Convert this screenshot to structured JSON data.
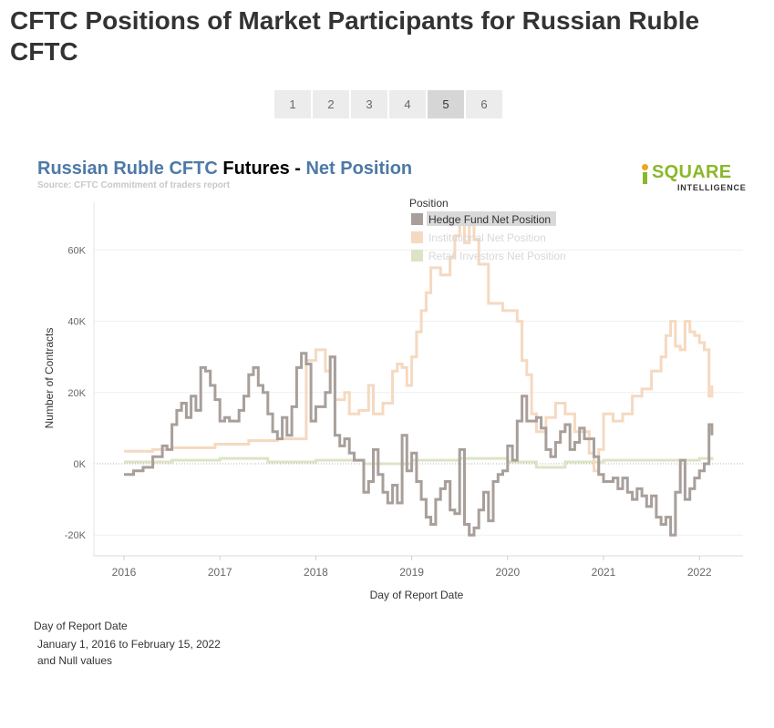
{
  "page": {
    "title": "CFTC Positions of Market Participants for Russian Ruble CFTC"
  },
  "pager": {
    "buttons": [
      "1",
      "2",
      "3",
      "4",
      "5",
      "6"
    ],
    "active": "5"
  },
  "chart_heading": {
    "part1": "Russian Ruble CFTC",
    "part2": " Futures - ",
    "part3": "Net Position"
  },
  "chart_source": "Source: CFTC Commitment of traders report",
  "logo": {
    "main": "SQUARE",
    "sub": "INTELLIGENCE"
  },
  "colors": {
    "hedge": "#a89f9b",
    "institutional": "#f5d9c0",
    "retail": "#dde3c5",
    "heading_blue": "#4e79a7",
    "logo_green": "#8bb72c",
    "logo_orange": "#f0a51c"
  },
  "filter": {
    "title": "Day of Report Date",
    "line1": "January 1, 2016 to February 15, 2022",
    "line2": "and Null values"
  },
  "chart_data": {
    "type": "line",
    "xlabel": "Day of Report Date",
    "ylabel": "Number of Contracts",
    "xlim": [
      2016.0,
      2022.5
    ],
    "ylim": [
      -23000,
      75000
    ],
    "x_ticks": [
      2016,
      2017,
      2018,
      2019,
      2020,
      2021,
      2022
    ],
    "x_tick_labels": [
      "2016",
      "2017",
      "2018",
      "2019",
      "2020",
      "2021",
      "2022"
    ],
    "y_ticks": [
      -20000,
      0,
      20000,
      40000,
      60000
    ],
    "y_tick_labels": [
      "-20K",
      "0K",
      "20K",
      "40K",
      "60K"
    ],
    "grid": true,
    "legend": {
      "title": "Position",
      "placement": "top-center",
      "highlighted": "Hedge Fund Net Position"
    },
    "series": [
      {
        "name": "Hedge Fund Net Position",
        "values": [
          [
            2016.0,
            -3000
          ],
          [
            2016.1,
            -2000
          ],
          [
            2016.2,
            -1000
          ],
          [
            2016.3,
            2000
          ],
          [
            2016.4,
            5000
          ],
          [
            2016.45,
            4000
          ],
          [
            2016.5,
            11000
          ],
          [
            2016.55,
            15000
          ],
          [
            2016.6,
            17000
          ],
          [
            2016.65,
            13000
          ],
          [
            2016.7,
            19000
          ],
          [
            2016.75,
            15000
          ],
          [
            2016.8,
            27000
          ],
          [
            2016.85,
            26000
          ],
          [
            2016.9,
            22000
          ],
          [
            2016.95,
            18000
          ],
          [
            2017.0,
            12000
          ],
          [
            2017.05,
            13000
          ],
          [
            2017.1,
            12000
          ],
          [
            2017.2,
            15000
          ],
          [
            2017.25,
            19000
          ],
          [
            2017.3,
            25000
          ],
          [
            2017.35,
            27000
          ],
          [
            2017.4,
            22000
          ],
          [
            2017.45,
            20000
          ],
          [
            2017.5,
            14000
          ],
          [
            2017.55,
            9000
          ],
          [
            2017.6,
            7000
          ],
          [
            2017.65,
            13000
          ],
          [
            2017.7,
            8000
          ],
          [
            2017.75,
            16000
          ],
          [
            2017.8,
            27000
          ],
          [
            2017.85,
            31000
          ],
          [
            2017.9,
            28000
          ],
          [
            2017.95,
            12000
          ],
          [
            2018.0,
            16000
          ],
          [
            2018.1,
            20000
          ],
          [
            2018.15,
            30000
          ],
          [
            2018.2,
            8000
          ],
          [
            2018.25,
            5000
          ],
          [
            2018.3,
            7000
          ],
          [
            2018.35,
            3000
          ],
          [
            2018.4,
            1000
          ],
          [
            2018.5,
            -8000
          ],
          [
            2018.55,
            -5000
          ],
          [
            2018.6,
            4000
          ],
          [
            2018.65,
            -3000
          ],
          [
            2018.7,
            -8000
          ],
          [
            2018.75,
            -11000
          ],
          [
            2018.8,
            -6000
          ],
          [
            2018.85,
            -11000
          ],
          [
            2018.9,
            8000
          ],
          [
            2018.95,
            -2000
          ],
          [
            2019.0,
            3000
          ],
          [
            2019.05,
            -5000
          ],
          [
            2019.1,
            -10000
          ],
          [
            2019.15,
            -15000
          ],
          [
            2019.2,
            -17000
          ],
          [
            2019.25,
            -10000
          ],
          [
            2019.3,
            -7000
          ],
          [
            2019.35,
            -5000
          ],
          [
            2019.4,
            -13000
          ],
          [
            2019.45,
            -14000
          ],
          [
            2019.5,
            4000
          ],
          [
            2019.55,
            -17000
          ],
          [
            2019.6,
            -20000
          ],
          [
            2019.65,
            -18000
          ],
          [
            2019.7,
            -13000
          ],
          [
            2019.75,
            -8000
          ],
          [
            2019.8,
            -16000
          ],
          [
            2019.85,
            -5000
          ],
          [
            2019.9,
            -3000
          ],
          [
            2019.95,
            -2000
          ],
          [
            2020.0,
            5000
          ],
          [
            2020.05,
            1000
          ],
          [
            2020.1,
            12000
          ],
          [
            2020.15,
            19000
          ],
          [
            2020.2,
            12000
          ],
          [
            2020.3,
            13000
          ],
          [
            2020.35,
            10000
          ],
          [
            2020.4,
            4000
          ],
          [
            2020.45,
            2000
          ],
          [
            2020.5,
            6000
          ],
          [
            2020.55,
            9000
          ],
          [
            2020.6,
            11000
          ],
          [
            2020.65,
            4000
          ],
          [
            2020.7,
            6000
          ],
          [
            2020.75,
            10000
          ],
          [
            2020.8,
            7000
          ],
          [
            2020.9,
            2000
          ],
          [
            2020.95,
            -3000
          ],
          [
            2021.0,
            -5000
          ],
          [
            2021.1,
            -4000
          ],
          [
            2021.15,
            -7000
          ],
          [
            2021.2,
            -4000
          ],
          [
            2021.25,
            -8000
          ],
          [
            2021.3,
            -10000
          ],
          [
            2021.35,
            -7000
          ],
          [
            2021.4,
            -9000
          ],
          [
            2021.45,
            -12000
          ],
          [
            2021.5,
            -9000
          ],
          [
            2021.55,
            -15000
          ],
          [
            2021.6,
            -17000
          ],
          [
            2021.65,
            -15000
          ],
          [
            2021.7,
            -20000
          ],
          [
            2021.75,
            -8000
          ],
          [
            2021.8,
            1000
          ],
          [
            2021.85,
            -10000
          ],
          [
            2021.9,
            -7000
          ],
          [
            2021.95,
            -4000
          ],
          [
            2022.0,
            -2000
          ],
          [
            2022.05,
            0
          ],
          [
            2022.1,
            11000
          ],
          [
            2022.13,
            8000
          ]
        ]
      },
      {
        "name": "Institutional Net Position",
        "values": [
          [
            2016.0,
            3500
          ],
          [
            2016.3,
            4000
          ],
          [
            2016.5,
            4500
          ],
          [
            2016.8,
            4500
          ],
          [
            2016.95,
            5500
          ],
          [
            2017.3,
            6500
          ],
          [
            2017.6,
            7000
          ],
          [
            2017.85,
            7000
          ],
          [
            2017.9,
            29000
          ],
          [
            2018.0,
            32000
          ],
          [
            2018.1,
            26000
          ],
          [
            2018.15,
            30000
          ],
          [
            2018.2,
            18000
          ],
          [
            2018.3,
            20000
          ],
          [
            2018.35,
            14000
          ],
          [
            2018.45,
            15000
          ],
          [
            2018.55,
            22000
          ],
          [
            2018.6,
            14000
          ],
          [
            2018.7,
            17000
          ],
          [
            2018.8,
            26000
          ],
          [
            2018.85,
            28000
          ],
          [
            2018.9,
            27000
          ],
          [
            2018.95,
            22000
          ],
          [
            2019.0,
            30000
          ],
          [
            2019.05,
            37000
          ],
          [
            2019.1,
            43000
          ],
          [
            2019.15,
            48000
          ],
          [
            2019.2,
            55000
          ],
          [
            2019.3,
            53000
          ],
          [
            2019.4,
            58000
          ],
          [
            2019.45,
            64000
          ],
          [
            2019.5,
            70000
          ],
          [
            2019.55,
            62000
          ],
          [
            2019.6,
            67000
          ],
          [
            2019.65,
            63000
          ],
          [
            2019.7,
            56000
          ],
          [
            2019.8,
            45000
          ],
          [
            2019.95,
            43000
          ],
          [
            2020.1,
            40000
          ],
          [
            2020.15,
            29000
          ],
          [
            2020.2,
            25000
          ],
          [
            2020.25,
            14000
          ],
          [
            2020.3,
            9000
          ],
          [
            2020.4,
            13000
          ],
          [
            2020.5,
            17000
          ],
          [
            2020.6,
            14000
          ],
          [
            2020.7,
            9000
          ],
          [
            2020.85,
            3000
          ],
          [
            2020.9,
            -2000
          ],
          [
            2020.95,
            4000
          ],
          [
            2021.0,
            14000
          ],
          [
            2021.1,
            12000
          ],
          [
            2021.2,
            14000
          ],
          [
            2021.3,
            19000
          ],
          [
            2021.4,
            21000
          ],
          [
            2021.5,
            26000
          ],
          [
            2021.6,
            30000
          ],
          [
            2021.65,
            36000
          ],
          [
            2021.7,
            40000
          ],
          [
            2021.75,
            33000
          ],
          [
            2021.8,
            32000
          ],
          [
            2021.85,
            40000
          ],
          [
            2021.9,
            37000
          ],
          [
            2021.95,
            36000
          ],
          [
            2022.0,
            34000
          ],
          [
            2022.05,
            32000
          ],
          [
            2022.1,
            19000
          ],
          [
            2022.13,
            22000
          ]
        ]
      },
      {
        "name": "Retail Investors Net Position",
        "values": [
          [
            2016.0,
            500
          ],
          [
            2016.5,
            1000
          ],
          [
            2017.0,
            1500
          ],
          [
            2017.5,
            500
          ],
          [
            2018.0,
            1000
          ],
          [
            2018.5,
            0
          ],
          [
            2019.0,
            1000
          ],
          [
            2019.5,
            1500
          ],
          [
            2020.0,
            500
          ],
          [
            2020.3,
            -1000
          ],
          [
            2020.6,
            500
          ],
          [
            2021.0,
            1000
          ],
          [
            2021.5,
            1000
          ],
          [
            2022.0,
            1500
          ],
          [
            2022.13,
            1000
          ]
        ]
      }
    ]
  }
}
